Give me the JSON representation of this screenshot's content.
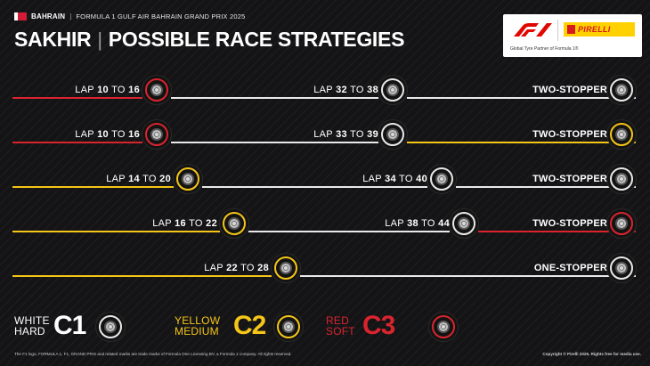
{
  "header": {
    "country": "BAHRAIN",
    "separator": "|",
    "event": "FORMULA 1 GULF AIR BAHRAIN GRAND PRIX 2025",
    "flag_colors": [
      "#ffffff",
      "#d31b35"
    ]
  },
  "title": {
    "location": "SAKHIR",
    "separator": "|",
    "text": "POSSIBLE RACE STRATEGIES"
  },
  "brand": {
    "f1_logo_icon": "f1-logo",
    "pirelli_name": "PIRELLI",
    "partner_text": "Global Tyre Partner of Formula 1®"
  },
  "compounds": {
    "hard": {
      "color": "#e9e9e9"
    },
    "medium": {
      "color": "#f5c518"
    },
    "soft": {
      "color": "#d9242e"
    }
  },
  "strategies": [
    {
      "name": "TWO-STOPPER",
      "stints": [
        {
          "compound": "soft",
          "label_prefix": "LAP",
          "from": "10",
          "to_word": "TO",
          "to": "16"
        },
        {
          "compound": "hard",
          "label_prefix": "LAP",
          "from": "32",
          "to_word": "TO",
          "to": "38"
        },
        {
          "compound": "hard"
        }
      ]
    },
    {
      "name": "TWO-STOPPER",
      "stints": [
        {
          "compound": "soft",
          "label_prefix": "LAP",
          "from": "10",
          "to_word": "TO",
          "to": "16"
        },
        {
          "compound": "hard",
          "label_prefix": "LAP",
          "from": "33",
          "to_word": "TO",
          "to": "39"
        },
        {
          "compound": "medium"
        }
      ]
    },
    {
      "name": "TWO-STOPPER",
      "stints": [
        {
          "compound": "medium",
          "label_prefix": "LAP",
          "from": "14",
          "to_word": "TO",
          "to": "20"
        },
        {
          "compound": "hard",
          "label_prefix": "LAP",
          "from": "34",
          "to_word": "TO",
          "to": "40"
        },
        {
          "compound": "hard"
        }
      ]
    },
    {
      "name": "TWO-STOPPER",
      "stints": [
        {
          "compound": "medium",
          "label_prefix": "LAP",
          "from": "16",
          "to_word": "TO",
          "to": "22"
        },
        {
          "compound": "hard",
          "label_prefix": "LAP",
          "from": "38",
          "to_word": "TO",
          "to": "44"
        },
        {
          "compound": "soft"
        }
      ]
    },
    {
      "name": "ONE-STOPPER",
      "stints": [
        {
          "compound": "medium",
          "label_prefix": "LAP",
          "from": "22",
          "to_word": "TO",
          "to": "28"
        },
        {
          "compound": "hard"
        }
      ]
    }
  ],
  "legend": [
    {
      "compound": "hard",
      "line1": "WHITE",
      "line2": "HARD",
      "code": "C1"
    },
    {
      "compound": "medium",
      "line1": "YELLOW",
      "line2": "MEDIUM",
      "code": "C2"
    },
    {
      "compound": "soft",
      "line1": "RED",
      "line2": "SOFT",
      "code": "C3"
    }
  ],
  "footer": {
    "left": "The F1 logo, FORMULA 1, F1, GRAND PRIX and related marks are trade marks of Formula One Licensing BV, a Formula 1 company. All rights reserved.",
    "right": "Copyright © Pirelli 2025. Rights free for media use."
  }
}
